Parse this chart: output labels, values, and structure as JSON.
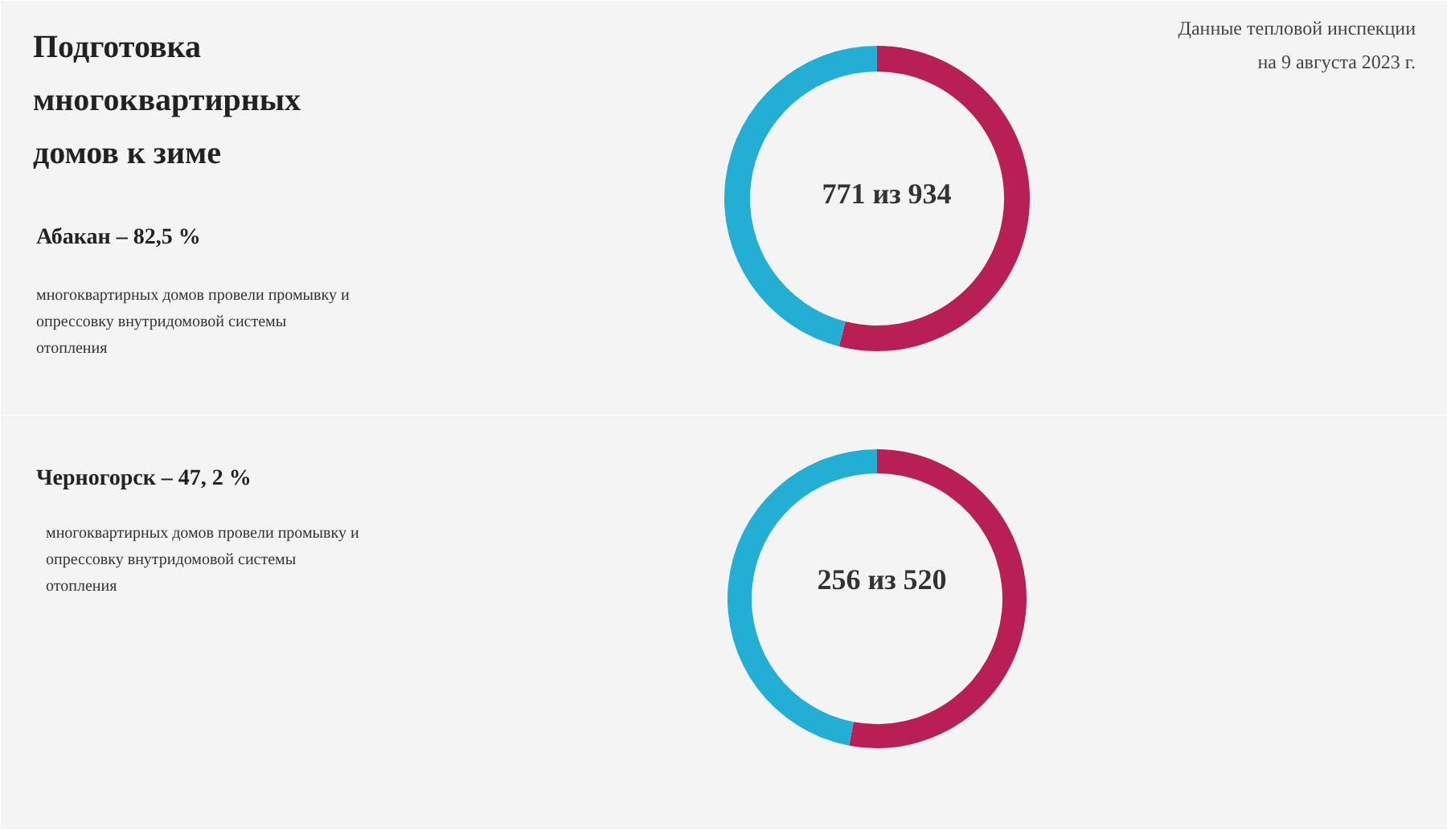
{
  "chart_data": [
    {
      "type": "donut",
      "title": "Подготовка\nмногоквартирных\nдомов к зиме",
      "subtitle": "Данные тепловой инспекции\nна 9 августа 2023 г.",
      "categories": [
        null,
        null
      ],
      "values": [
        54,
        46
      ],
      "colors": [
        "#b81f54",
        "#23afd4"
      ],
      "annotations": [
        "Абакан – 82,5 %",
        "многоквартирных домов провели промывку и\nопрессовку внутридомовой системы\nотопления",
        "771 из 934"
      ]
    },
    {
      "type": "donut",
      "categories": [
        null,
        null
      ],
      "values": [
        53,
        47
      ],
      "colors": [
        "#b81f54",
        "#23afd4"
      ],
      "annotations": [
        "Черногорск – 47, 2 %",
        "многоквартирных домов провели промывку и\nопрессовку внутридомовой системы\nотопления",
        "256 из 520"
      ]
    }
  ]
}
